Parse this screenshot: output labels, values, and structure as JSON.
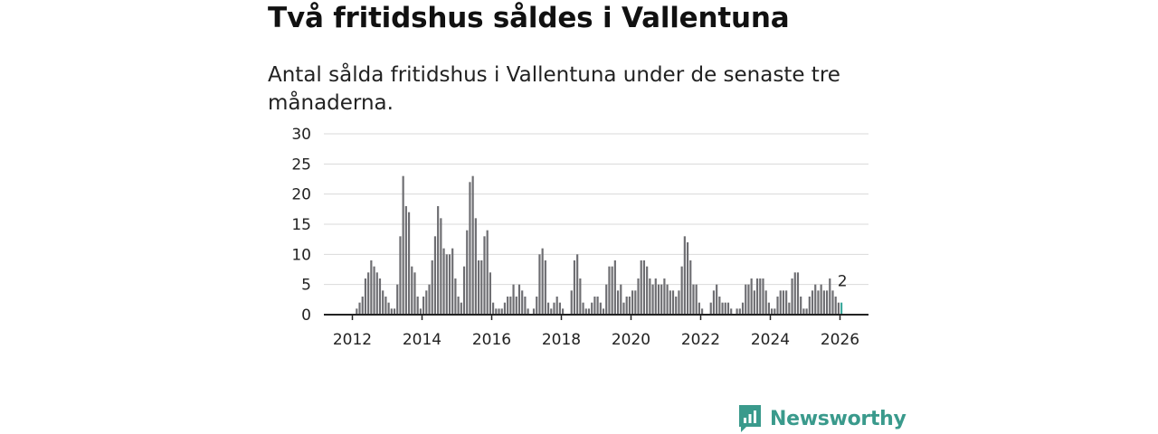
{
  "title": "Två fritidshus såldes i Vallentuna",
  "subtitle": "Antal sålda fritidshus i Vallentuna under de senaste tre månaderna.",
  "brand": {
    "name": "Newsworthy",
    "icon": "newsworthy-logo-icon"
  },
  "colors": {
    "bar": "#6e6e72",
    "highlight": "#3aa79b",
    "grid": "#d9d9d9",
    "axis": "#222222"
  },
  "chart_data": {
    "type": "bar",
    "title": "Antal sålda fritidshus i Vallentuna",
    "xlabel": "",
    "ylabel": "",
    "ylim": [
      0,
      30
    ],
    "yticks": [
      "0",
      "5",
      "10",
      "15",
      "20",
      "25",
      "30"
    ],
    "xticks": [
      "2012",
      "2014",
      "2016",
      "2018",
      "2020",
      "2022",
      "2024",
      "2026"
    ],
    "start": "2012-01",
    "values": [
      0,
      1,
      2,
      3,
      6,
      7,
      9,
      8,
      7,
      6,
      4,
      3,
      2,
      1,
      1,
      5,
      13,
      23,
      18,
      17,
      8,
      7,
      3,
      1,
      3,
      4,
      5,
      9,
      13,
      18,
      16,
      11,
      10,
      10,
      11,
      6,
      3,
      2,
      8,
      14,
      22,
      23,
      16,
      9,
      9,
      13,
      14,
      7,
      2,
      1,
      1,
      1,
      2,
      3,
      3,
      5,
      3,
      5,
      4,
      3,
      1,
      0,
      1,
      3,
      10,
      11,
      9,
      2,
      1,
      2,
      3,
      2,
      1,
      0,
      0,
      4,
      9,
      10,
      6,
      2,
      1,
      1,
      2,
      3,
      3,
      2,
      1,
      5,
      8,
      8,
      9,
      4,
      5,
      2,
      3,
      3,
      4,
      4,
      6,
      9,
      9,
      8,
      6,
      5,
      6,
      5,
      5,
      6,
      5,
      4,
      4,
      3,
      4,
      8,
      13,
      12,
      9,
      5,
      5,
      2,
      1,
      0,
      0,
      2,
      4,
      5,
      3,
      2,
      2,
      2,
      1,
      0,
      1,
      1,
      2,
      5,
      5,
      6,
      4,
      6,
      6,
      6,
      4,
      2,
      1,
      1,
      3,
      4,
      4,
      4,
      2,
      6,
      7,
      7,
      3,
      1,
      1,
      3,
      4,
      5,
      4,
      5,
      4,
      4,
      6,
      4,
      3,
      2,
      2
    ],
    "highlight_label": "2"
  }
}
